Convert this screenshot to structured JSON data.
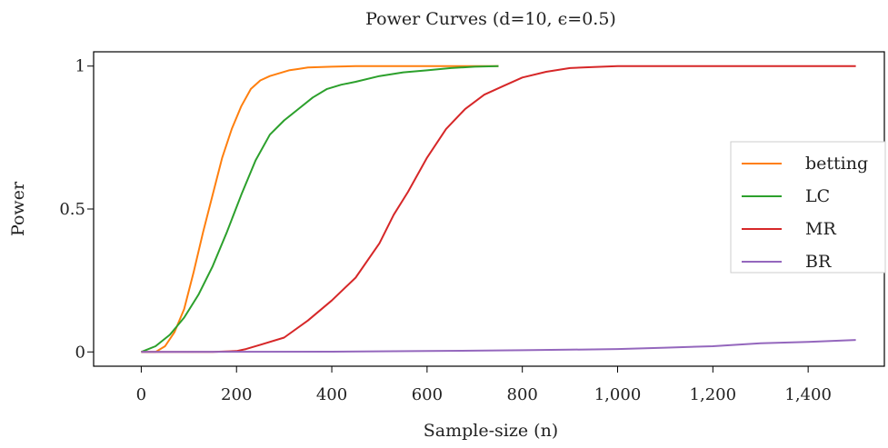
{
  "chart_data": {
    "type": "line",
    "title": "Power Curves (d=10, ϵ=0.5)",
    "xlabel": "Sample-size (n)",
    "ylabel": "Power",
    "xlim": [
      -100,
      1560
    ],
    "ylim": [
      -0.05,
      1.05
    ],
    "x_ticks": [
      0,
      200,
      400,
      600,
      800,
      1000,
      1200,
      1400
    ],
    "x_tick_labels": [
      "0",
      "200",
      "400",
      "600",
      "800",
      "1,000",
      "1,200",
      "1,400"
    ],
    "y_ticks": [
      0,
      0.5,
      1
    ],
    "y_tick_labels": [
      "0",
      "0.5",
      "1"
    ],
    "grid": false,
    "legend_position": "right",
    "series": [
      {
        "name": "betting",
        "color": "#ff7f0e",
        "x": [
          0,
          30,
          50,
          70,
          90,
          110,
          130,
          150,
          170,
          190,
          210,
          230,
          250,
          270,
          290,
          310,
          330,
          350,
          400,
          450,
          500,
          550,
          600,
          650,
          700,
          750
        ],
        "y": [
          0,
          0.0,
          0.02,
          0.07,
          0.15,
          0.28,
          0.42,
          0.55,
          0.68,
          0.78,
          0.86,
          0.92,
          0.95,
          0.965,
          0.975,
          0.985,
          0.99,
          0.995,
          0.998,
          1.0,
          1.0,
          1.0,
          1.0,
          1.0,
          1.0,
          1.0
        ]
      },
      {
        "name": "LC",
        "color": "#2ca02c",
        "x": [
          0,
          30,
          60,
          90,
          120,
          150,
          180,
          210,
          240,
          270,
          300,
          330,
          360,
          390,
          420,
          450,
          500,
          550,
          600,
          650,
          700,
          750
        ],
        "y": [
          0,
          0.02,
          0.06,
          0.12,
          0.2,
          0.3,
          0.42,
          0.55,
          0.67,
          0.76,
          0.81,
          0.85,
          0.89,
          0.92,
          0.935,
          0.945,
          0.965,
          0.978,
          0.985,
          0.993,
          0.998,
          1.0
        ]
      },
      {
        "name": "MR",
        "color": "#d62728",
        "x": [
          0,
          150,
          200,
          220,
          250,
          300,
          350,
          400,
          450,
          500,
          530,
          560,
          600,
          640,
          680,
          720,
          760,
          800,
          850,
          900,
          950,
          1000,
          1100,
          1200,
          1300,
          1400,
          1500
        ],
        "y": [
          0,
          0,
          0.003,
          0.01,
          0.025,
          0.05,
          0.11,
          0.18,
          0.26,
          0.38,
          0.48,
          0.56,
          0.68,
          0.78,
          0.85,
          0.9,
          0.93,
          0.96,
          0.98,
          0.993,
          0.997,
          1.0,
          1.0,
          1.0,
          1.0,
          1.0,
          1.0
        ]
      },
      {
        "name": "BR",
        "color": "#9467bd",
        "x": [
          0,
          400,
          600,
          800,
          900,
          1000,
          1100,
          1200,
          1300,
          1400,
          1500
        ],
        "y": [
          0,
          0.001,
          0.003,
          0.006,
          0.008,
          0.01,
          0.015,
          0.02,
          0.03,
          0.035,
          0.042
        ]
      }
    ]
  }
}
